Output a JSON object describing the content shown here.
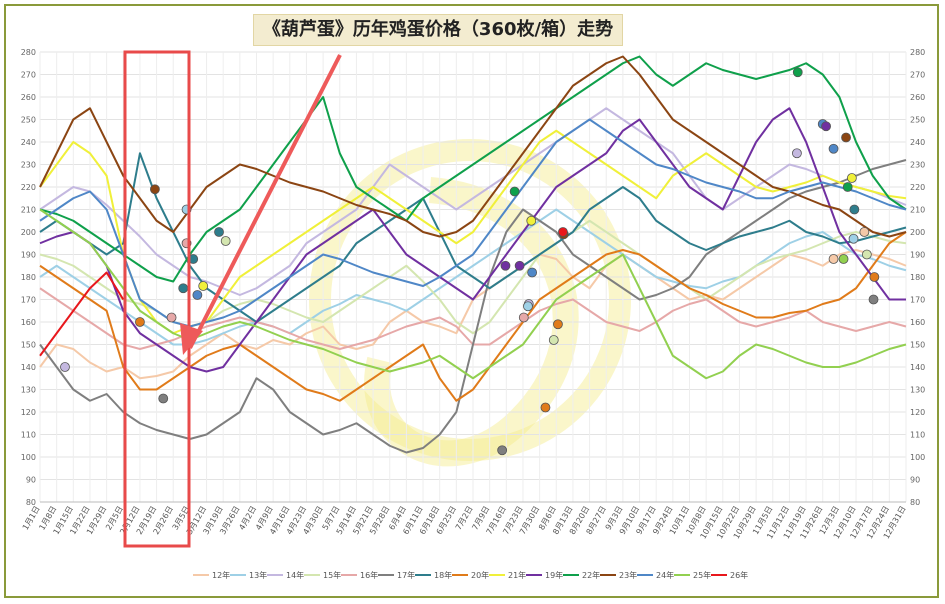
{
  "chart_data": {
    "type": "line",
    "title": "《葫芦蛋》历年鸡蛋价格（360枚/箱）走势",
    "ylim": [
      80,
      280
    ],
    "y_ticks": [
      80,
      90,
      100,
      110,
      120,
      130,
      140,
      150,
      160,
      170,
      180,
      190,
      200,
      210,
      220,
      230,
      240,
      250,
      260,
      270,
      280
    ],
    "x_ticks": [
      "1月1日",
      "1月8日",
      "1月15日",
      "1月22日",
      "1月29日",
      "2月5日",
      "2月12日",
      "2月19日",
      "2月26日",
      "3月5日",
      "3月12日",
      "3月19日",
      "3月26日",
      "4月2日",
      "4月9日",
      "4月16日",
      "4月23日",
      "4月30日",
      "5月7日",
      "5月14日",
      "5月21日",
      "5月28日",
      "6月4日",
      "6月11日",
      "6月18日",
      "6月25日",
      "7月2日",
      "7月9日",
      "7月16日",
      "7月23日",
      "7月30日",
      "8月6日",
      "8月13日",
      "8月20日",
      "8月27日",
      "9月3日",
      "9月10日",
      "9月17日",
      "9月24日",
      "10月1日",
      "10月8日",
      "10月15日",
      "10月22日",
      "10月29日",
      "11月5日",
      "11月12日",
      "11月19日",
      "11月26日",
      "12月3日",
      "12月10日",
      "12月17日",
      "12月24日",
      "12月31日"
    ],
    "series": [
      {
        "name": "12年",
        "color": "#f5c9a8",
        "values": [
          140,
          150,
          148,
          142,
          138,
          140,
          135,
          136,
          138,
          145,
          150,
          155,
          150,
          148,
          152,
          150,
          155,
          158,
          150,
          148,
          150,
          160,
          165,
          160,
          158,
          155,
          170,
          175,
          180,
          185,
          190,
          188,
          180,
          175,
          185,
          190,
          185,
          180,
          175,
          170,
          172,
          170,
          175,
          180,
          185,
          190,
          188,
          185,
          190,
          192,
          190,
          188,
          185
        ]
      },
      {
        "name": "13年",
        "color": "#9ed0e6",
        "values": [
          180,
          185,
          180,
          175,
          170,
          165,
          160,
          155,
          150,
          150,
          152,
          155,
          158,
          160,
          158,
          155,
          160,
          165,
          168,
          172,
          170,
          168,
          165,
          170,
          175,
          180,
          185,
          190,
          195,
          200,
          205,
          210,
          205,
          200,
          195,
          190,
          185,
          180,
          178,
          176,
          175,
          178,
          180,
          185,
          190,
          195,
          198,
          200,
          195,
          190,
          188,
          185,
          183
        ]
      },
      {
        "name": "14年",
        "color": "#c4b8e0",
        "values": [
          210,
          215,
          220,
          218,
          212,
          205,
          198,
          190,
          185,
          180,
          178,
          175,
          172,
          175,
          180,
          185,
          195,
          200,
          205,
          210,
          220,
          230,
          225,
          220,
          215,
          210,
          215,
          220,
          225,
          230,
          235,
          240,
          245,
          250,
          255,
          250,
          245,
          240,
          235,
          225,
          215,
          210,
          215,
          220,
          225,
          230,
          228,
          225,
          222,
          220,
          218,
          215,
          212
        ]
      },
      {
        "name": "15年",
        "color": "#d4e6b0",
        "values": [
          190,
          188,
          185,
          180,
          175,
          170,
          168,
          165,
          160,
          158,
          160,
          165,
          168,
          170,
          168,
          165,
          162,
          160,
          165,
          170,
          175,
          180,
          185,
          178,
          170,
          160,
          155,
          160,
          170,
          180,
          190,
          195,
          200,
          205,
          200,
          195,
          190,
          185,
          180,
          175,
          170,
          175,
          180,
          185,
          188,
          190,
          192,
          195,
          198,
          200,
          198,
          196,
          195
        ]
      },
      {
        "name": "16年",
        "color": "#e6a8a8",
        "values": [
          175,
          170,
          165,
          160,
          155,
          150,
          148,
          150,
          152,
          155,
          158,
          160,
          162,
          160,
          158,
          155,
          152,
          150,
          148,
          150,
          152,
          155,
          158,
          160,
          162,
          158,
          150,
          150,
          155,
          160,
          165,
          168,
          170,
          165,
          160,
          158,
          156,
          160,
          165,
          168,
          170,
          165,
          160,
          158,
          160,
          162,
          165,
          160,
          158,
          156,
          158,
          160,
          158
        ]
      },
      {
        "name": "17年",
        "color": "#7f7f7f",
        "values": [
          150,
          140,
          130,
          125,
          128,
          120,
          115,
          112,
          110,
          108,
          110,
          115,
          120,
          135,
          130,
          120,
          115,
          110,
          112,
          115,
          110,
          105,
          102,
          104,
          110,
          120,
          150,
          180,
          200,
          210,
          205,
          200,
          190,
          185,
          180,
          175,
          170,
          172,
          175,
          180,
          190,
          195,
          200,
          205,
          210,
          215,
          218,
          220,
          222,
          225,
          228,
          230,
          232
        ]
      },
      {
        "name": "18年",
        "color": "#2e7d8c",
        "values": [
          200,
          205,
          200,
          195,
          190,
          195,
          235,
          215,
          200,
          185,
          175,
          170,
          165,
          160,
          165,
          170,
          175,
          180,
          185,
          195,
          200,
          205,
          210,
          215,
          200,
          185,
          180,
          175,
          180,
          185,
          190,
          195,
          200,
          210,
          215,
          220,
          215,
          205,
          200,
          195,
          192,
          195,
          198,
          200,
          202,
          205,
          200,
          198,
          195,
          196,
          198,
          200,
          202
        ]
      },
      {
        "name": "20年",
        "color": "#e07b1a",
        "values": [
          185,
          180,
          175,
          170,
          165,
          140,
          130,
          130,
          135,
          140,
          145,
          148,
          150,
          145,
          140,
          135,
          130,
          128,
          125,
          130,
          135,
          140,
          145,
          150,
          135,
          125,
          130,
          140,
          150,
          160,
          170,
          175,
          180,
          185,
          190,
          192,
          190,
          185,
          180,
          175,
          172,
          168,
          165,
          162,
          162,
          164,
          165,
          168,
          170,
          175,
          185,
          195,
          200
        ]
      },
      {
        "name": "21年",
        "color": "#f0f03a",
        "values": [
          220,
          230,
          240,
          235,
          225,
          190,
          170,
          160,
          155,
          158,
          160,
          170,
          180,
          185,
          190,
          195,
          200,
          205,
          210,
          215,
          220,
          215,
          210,
          205,
          200,
          195,
          200,
          210,
          220,
          230,
          240,
          245,
          240,
          235,
          230,
          225,
          220,
          215,
          225,
          230,
          235,
          230,
          225,
          220,
          218,
          220,
          222,
          225,
          222,
          220,
          218,
          216,
          215
        ]
      },
      {
        "name": "19年",
        "color": "#7030a0",
        "values": [
          195,
          198,
          200,
          195,
          185,
          165,
          155,
          150,
          145,
          140,
          138,
          140,
          150,
          160,
          170,
          180,
          190,
          195,
          200,
          205,
          210,
          200,
          190,
          185,
          180,
          175,
          170,
          180,
          190,
          200,
          210,
          220,
          225,
          230,
          235,
          245,
          250,
          240,
          230,
          220,
          215,
          210,
          225,
          240,
          250,
          255,
          240,
          220,
          200,
          190,
          180,
          170,
          170
        ]
      },
      {
        "name": "22年",
        "color": "#0fa04b",
        "values": [
          210,
          208,
          205,
          200,
          195,
          190,
          185,
          180,
          178,
          190,
          200,
          205,
          210,
          220,
          230,
          240,
          250,
          260,
          235,
          220,
          215,
          210,
          205,
          215,
          220,
          225,
          230,
          235,
          240,
          245,
          250,
          255,
          260,
          265,
          270,
          275,
          278,
          270,
          265,
          270,
          275,
          272,
          270,
          268,
          270,
          272,
          275,
          270,
          260,
          240,
          225,
          215,
          210
        ]
      },
      {
        "name": "23年",
        "color": "#8b4513",
        "values": [
          220,
          235,
          250,
          255,
          240,
          225,
          215,
          205,
          200,
          210,
          220,
          225,
          230,
          228,
          225,
          222,
          220,
          218,
          215,
          212,
          210,
          208,
          205,
          200,
          198,
          200,
          205,
          215,
          225,
          235,
          245,
          255,
          265,
          270,
          275,
          278,
          270,
          260,
          250,
          245,
          240,
          235,
          230,
          225,
          220,
          218,
          215,
          212,
          210,
          205,
          200,
          198,
          200
        ]
      },
      {
        "name": "24年",
        "color": "#4f87c7",
        "values": [
          205,
          210,
          215,
          218,
          210,
          190,
          170,
          165,
          160,
          158,
          160,
          162,
          165,
          170,
          175,
          180,
          185,
          190,
          188,
          185,
          182,
          180,
          178,
          176,
          180,
          185,
          190,
          200,
          210,
          220,
          230,
          240,
          245,
          250,
          245,
          240,
          235,
          230,
          228,
          225,
          222,
          220,
          218,
          215,
          215,
          218,
          220,
          222,
          220,
          218,
          215,
          212,
          210
        ]
      },
      {
        "name": "25年",
        "color": "#92d050",
        "values": [
          210,
          205,
          200,
          195,
          185,
          175,
          165,
          160,
          155,
          152,
          155,
          158,
          160,
          158,
          155,
          152,
          150,
          148,
          145,
          142,
          140,
          138,
          140,
          142,
          145,
          140,
          135,
          140,
          145,
          150,
          160,
          170,
          175,
          180,
          185,
          190,
          175,
          160,
          145,
          140,
          135,
          138,
          145,
          150,
          148,
          145,
          142,
          140,
          140,
          142,
          145,
          148,
          150
        ]
      },
      {
        "name": "26年",
        "color": "#e8171c",
        "values": [
          145,
          155,
          165,
          175,
          182,
          170
        ]
      }
    ],
    "marker_points": [
      {
        "series": "23年",
        "x": 13.8,
        "y": 219
      },
      {
        "series": "14年",
        "x": 3.0,
        "y": 140
      },
      {
        "series": "20年",
        "x": 12.0,
        "y": 160
      },
      {
        "series": "17年",
        "x": 14.8,
        "y": 126
      },
      {
        "series": "16年",
        "x": 15.8,
        "y": 162
      },
      {
        "series": "18年",
        "x": 17.2,
        "y": 175
      },
      {
        "series": "13年",
        "x": 17.6,
        "y": 210
      },
      {
        "series": "16年",
        "x": 17.6,
        "y": 195
      },
      {
        "series": "18年",
        "x": 18.4,
        "y": 188
      },
      {
        "series": "24年",
        "x": 18.9,
        "y": 172
      },
      {
        "series": "21年",
        "x": 19.6,
        "y": 176
      },
      {
        "series": "18年",
        "x": 21.5,
        "y": 200
      },
      {
        "series": "15年",
        "x": 22.3,
        "y": 196
      },
      {
        "series": "22年",
        "x": 57.0,
        "y": 218
      },
      {
        "series": "21年",
        "x": 59.0,
        "y": 205
      },
      {
        "series": "19年",
        "x": 57.6,
        "y": 185
      },
      {
        "series": "19年",
        "x": 55.9,
        "y": 185
      },
      {
        "series": "24年",
        "x": 59.1,
        "y": 182
      },
      {
        "series": "14年",
        "x": 58.7,
        "y": 168
      },
      {
        "series": "16年",
        "x": 58.1,
        "y": 162
      },
      {
        "series": "20年",
        "x": 60.7,
        "y": 122
      },
      {
        "series": "17年",
        "x": 55.5,
        "y": 103
      },
      {
        "series": "20年",
        "x": 62.2,
        "y": 159
      },
      {
        "series": "15年",
        "x": 61.7,
        "y": 152
      },
      {
        "series": "23年",
        "x": 62.9,
        "y": 199
      },
      {
        "series": "26年",
        "x": 62.8,
        "y": 200
      },
      {
        "series": "13年",
        "x": 58.6,
        "y": 167
      },
      {
        "series": "22年",
        "x": 91.0,
        "y": 271
      },
      {
        "series": "24年",
        "x": 94.0,
        "y": 248
      },
      {
        "series": "19年",
        "x": 94.4,
        "y": 247
      },
      {
        "series": "23年",
        "x": 96.8,
        "y": 242
      },
      {
        "series": "14年",
        "x": 90.9,
        "y": 235
      },
      {
        "series": "24年",
        "x": 95.3,
        "y": 237
      },
      {
        "series": "21年",
        "x": 97.5,
        "y": 224
      },
      {
        "series": "18年",
        "x": 97.8,
        "y": 210
      },
      {
        "series": "22年",
        "x": 97.0,
        "y": 220
      },
      {
        "series": "13年",
        "x": 97.7,
        "y": 197
      },
      {
        "series": "12年",
        "x": 99.0,
        "y": 200
      },
      {
        "series": "15年",
        "x": 99.3,
        "y": 190
      },
      {
        "series": "17年",
        "x": 100.1,
        "y": 170
      },
      {
        "series": "20年",
        "x": 100.2,
        "y": 180
      },
      {
        "series": "12年",
        "x": 95.3,
        "y": 188
      },
      {
        "series": "25年",
        "x": 96.5,
        "y": 188
      }
    ],
    "legend_position": "bottom",
    "grid": true
  }
}
